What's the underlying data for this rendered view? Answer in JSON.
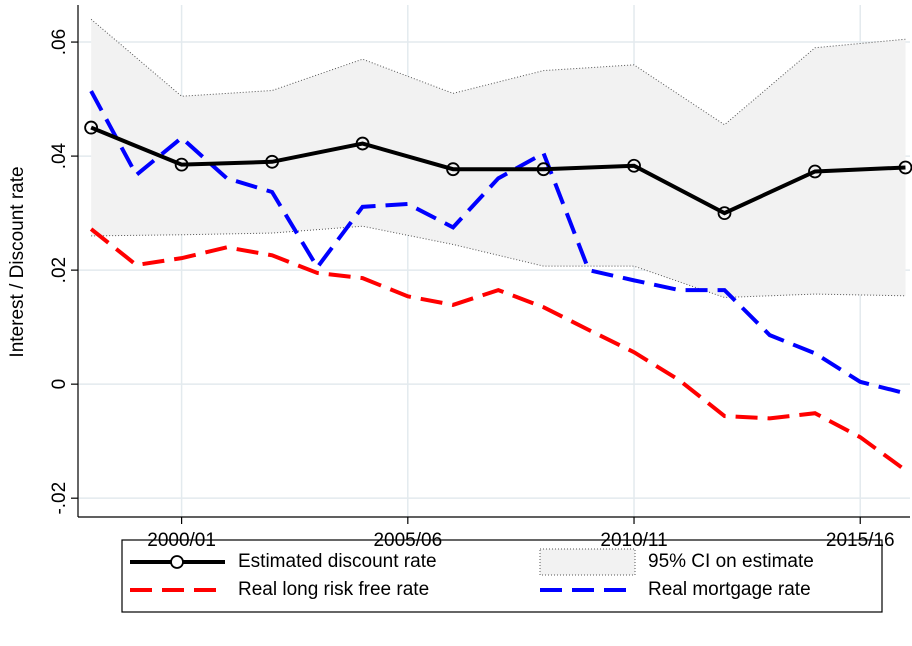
{
  "chart_data": {
    "type": "line",
    "y_label": "Interest / Discount rate",
    "xlim": [
      1997.71,
      2016.1
    ],
    "ylim": [
      -0.0233,
      0.0665
    ],
    "xticks": [
      {
        "value": 2000,
        "label": "2000/01"
      },
      {
        "value": 2005,
        "label": "2005/06"
      },
      {
        "value": 2010,
        "label": "2010/11"
      },
      {
        "value": 2015,
        "label": "2015/16"
      }
    ],
    "yticks": [
      {
        "value": -0.02,
        "label": "-.02"
      },
      0,
      {
        "value": 0.02,
        "label": ".02"
      },
      {
        "value": 0.04,
        "label": ".04"
      },
      {
        "value": 0.06,
        "label": ".06"
      }
    ],
    "grid": true,
    "band": {
      "name": "95% CI on estimate",
      "color": "#f2f2f2",
      "x": [
        1998,
        2000,
        2002,
        2004,
        2006,
        2008,
        2010,
        2012,
        2014,
        2016
      ],
      "upper": [
        0.064,
        0.0505,
        0.0515,
        0.057,
        0.051,
        0.055,
        0.056,
        0.0455,
        0.059,
        0.0605
      ],
      "lower": [
        0.026,
        0.0262,
        0.0265,
        0.0277,
        0.0245,
        0.0207,
        0.0207,
        0.0152,
        0.0158,
        0.0155
      ]
    },
    "series": [
      {
        "name": "Estimated discount rate",
        "color": "#000000",
        "dash": "solid",
        "markers": true,
        "x": [
          1998,
          2000,
          2002,
          2004,
          2006,
          2008,
          2010,
          2012,
          2014,
          2016
        ],
        "values": [
          0.045,
          0.0385,
          0.039,
          0.0422,
          0.0377,
          0.0377,
          0.0383,
          0.03,
          0.0373,
          0.038
        ]
      },
      {
        "name": "Real long risk free rate",
        "color": "#ff0000",
        "dash": "long",
        "x": [
          1998,
          1999,
          2000,
          2001,
          2002,
          2003,
          2004,
          2005,
          2006,
          2007,
          2008,
          2009,
          2010,
          2011,
          2012,
          2013,
          2014,
          2015,
          2016
        ],
        "values": [
          0.0272,
          0.0209,
          0.0221,
          0.024,
          0.0226,
          0.0195,
          0.0186,
          0.0154,
          0.0139,
          0.0165,
          0.0135,
          0.0095,
          0.0056,
          0.0007,
          -0.0056,
          -0.006,
          -0.0051,
          -0.0093,
          -0.0151
        ]
      },
      {
        "name": "Real mortgage rate",
        "color": "#0000ff",
        "dash": "long",
        "x": [
          1998,
          1999,
          2000,
          2001,
          2002,
          2003,
          2004,
          2005,
          2006,
          2007,
          2008,
          2009,
          2010,
          2011,
          2012,
          2013,
          2014,
          2015,
          2016
        ],
        "values": [
          0.0514,
          0.0367,
          0.0432,
          0.0361,
          0.0337,
          0.0205,
          0.0311,
          0.0316,
          0.0275,
          0.0361,
          0.0405,
          0.02,
          0.0182,
          0.0165,
          0.0165,
          0.0086,
          0.0054,
          0.0004,
          -0.0016
        ]
      }
    ]
  }
}
